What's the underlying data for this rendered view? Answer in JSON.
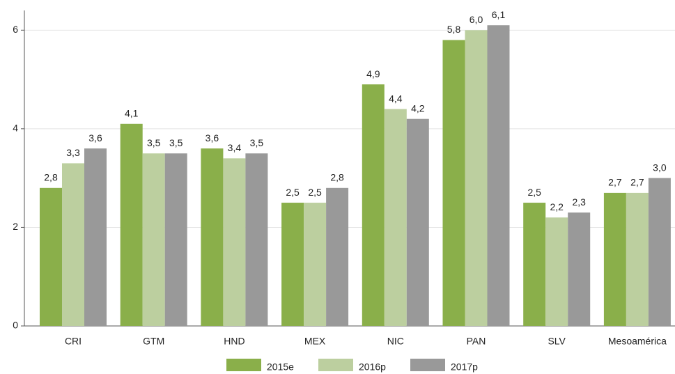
{
  "chart_data": {
    "type": "bar",
    "categories": [
      "CRI",
      "GTM",
      "HND",
      "MEX",
      "NIC",
      "PAN",
      "SLV",
      "Mesoamérica"
    ],
    "series": [
      {
        "name": "2015e",
        "color": "#8aaf4a",
        "values": [
          2.8,
          4.1,
          3.6,
          2.5,
          4.9,
          5.8,
          2.5,
          2.7
        ],
        "value_labels": [
          "2,8",
          "4,1",
          "3,6",
          "2,5",
          "4,9",
          "5,8",
          "2,5",
          "2,7"
        ]
      },
      {
        "name": "2016p",
        "color": "#bccf9f",
        "values": [
          3.3,
          3.5,
          3.4,
          2.5,
          4.4,
          6.0,
          2.2,
          2.7
        ],
        "value_labels": [
          "3,3",
          "3,5",
          "3,4",
          "2,5",
          "4,4",
          "6,0",
          "2,2",
          "2,7"
        ]
      },
      {
        "name": "2017p",
        "color": "#999999",
        "values": [
          3.6,
          3.5,
          3.5,
          2.8,
          4.2,
          6.1,
          2.3,
          3.0
        ],
        "value_labels": [
          "3,6",
          "3,5",
          "3,5",
          "2,8",
          "4,2",
          "6,1",
          "2,3",
          "3,0"
        ]
      }
    ],
    "ylim": [
      0,
      6.4
    ],
    "yticks": [
      0,
      2,
      4,
      6
    ],
    "grid": true,
    "legend": "bottom"
  }
}
